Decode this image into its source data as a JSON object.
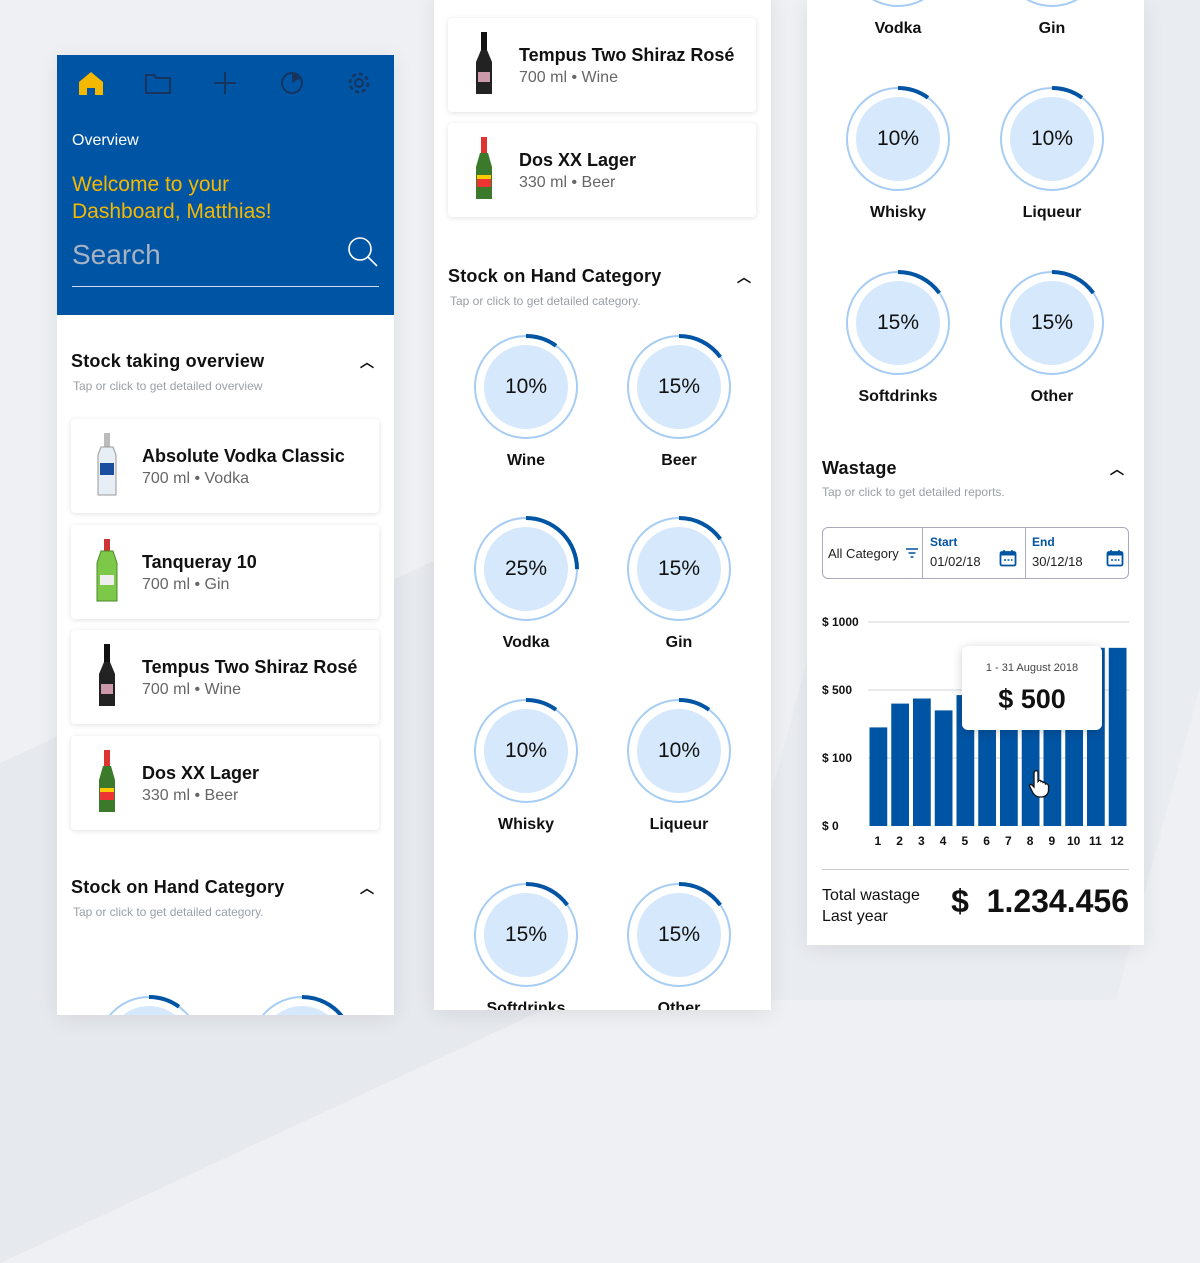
{
  "colors": {
    "brand": "#0054a4",
    "accent": "#f5b800",
    "ring_fill": "#d6e8fb",
    "ring_track": "#a7cdf4"
  },
  "nav": {
    "icons": [
      "home-icon",
      "folder-icon",
      "plus-icon",
      "pie-chart-icon",
      "gear-icon"
    ]
  },
  "header": {
    "overview": "Overview",
    "welcome_line1": "Welcome to your",
    "welcome_line2": "Dashboard, Matthias!",
    "search_placeholder": "Search"
  },
  "stock_overview": {
    "title": "Stock taking overview",
    "subtitle": "Tap or click to get detailed overview"
  },
  "products": [
    {
      "name": "Absolute Vodka Classic",
      "meta": "700 ml • Vodka",
      "bottle": "vodka"
    },
    {
      "name": "Tanqueray 10",
      "meta": "700 ml • Gin",
      "bottle": "gin"
    },
    {
      "name": "Tempus Two Shiraz Rosé",
      "meta": "700 ml • Wine",
      "bottle": "wine"
    },
    {
      "name": "Dos XX Lager",
      "meta": "330 ml • Beer",
      "bottle": "beer"
    }
  ],
  "stock_category": {
    "title": "Stock on Hand Category",
    "subtitle": "Tap or click to get detailed category."
  },
  "categories": [
    {
      "name": "Wine",
      "percent": 10
    },
    {
      "name": "Beer",
      "percent": 15
    },
    {
      "name": "Vodka",
      "percent": 25
    },
    {
      "name": "Gin",
      "percent": 15
    },
    {
      "name": "Whisky",
      "percent": 10
    },
    {
      "name": "Liqueur",
      "percent": 10
    },
    {
      "name": "Softdrinks",
      "percent": 15
    },
    {
      "name": "Other",
      "percent": 15
    }
  ],
  "wastage": {
    "title": "Wastage",
    "subtitle": "Tap or click to get detailed reports.",
    "filter_category": "All Category",
    "start_label": "Start",
    "start_value": "01/02/18",
    "end_label": "End",
    "end_value": "30/12/18",
    "tooltip_period": "1 - 31 August 2018",
    "tooltip_value": "$ 500",
    "total_label_1": "Total wastage",
    "total_label_2": "Last year",
    "total_value": "$  1.234.456"
  },
  "chart_data": {
    "type": "bar",
    "categories": [
      "1",
      "2",
      "3",
      "4",
      "5",
      "6",
      "7",
      "8",
      "9",
      "10",
      "11",
      "12"
    ],
    "values": [
      280,
      420,
      450,
      380,
      470,
      500,
      500,
      500,
      500,
      500,
      810,
      810
    ],
    "yticks": [
      "$ 0",
      "$ 100",
      "$ 500",
      "$ 1000"
    ],
    "ytick_values": [
      0,
      100,
      500,
      1000
    ],
    "ylim": [
      0,
      1000
    ],
    "grid": true,
    "bar_color": "#0054a4",
    "highlighted": "8"
  }
}
